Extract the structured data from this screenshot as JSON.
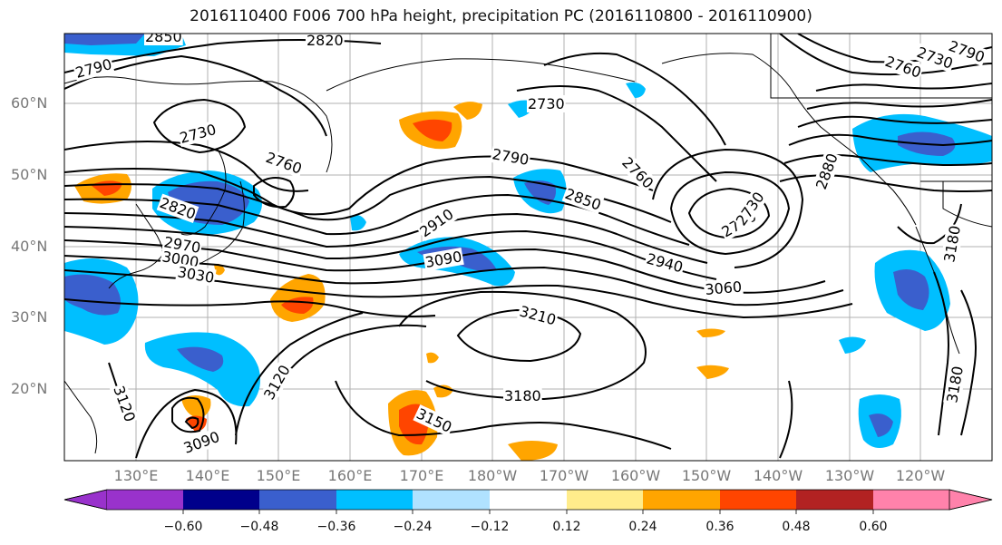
{
  "title": "2016110400 F006 700 hPa height, precipitation PC (2016110800 - 2016110900)",
  "lat_labels": [
    "60°N",
    "50°N",
    "40°N",
    "30°N",
    "20°N"
  ],
  "lon_labels": [
    "130°E",
    "140°E",
    "150°E",
    "160°E",
    "170°E",
    "180°W",
    "170°W",
    "160°W",
    "150°W",
    "140°W",
    "130°W",
    "120°W"
  ],
  "contour_labels": [
    "2850",
    "2820",
    "2790",
    "2730",
    "2730",
    "2760",
    "2820",
    "2970",
    "3000",
    "3030",
    "2790",
    "2850",
    "2910",
    "3090",
    "2760",
    "2700",
    "2730",
    "2940",
    "3060",
    "3210",
    "3180",
    "3150",
    "3120",
    "3120",
    "3090",
    "2880",
    "2760",
    "2730",
    "2790",
    "3180",
    "3180"
  ],
  "colorbar": {
    "labels": [
      "−0.60",
      "−0.48",
      "−0.36",
      "−0.24",
      "−0.12",
      "0.12",
      "0.24",
      "0.36",
      "0.48",
      "0.60"
    ],
    "colors": [
      "#9932cc",
      "#00008b",
      "#3a5fcd",
      "#00bfff",
      "#b0e2ff",
      "#ffffff",
      "#ffec8b",
      "#ffa500",
      "#ff4500",
      "#b22222",
      "#ff82ab"
    ]
  }
}
